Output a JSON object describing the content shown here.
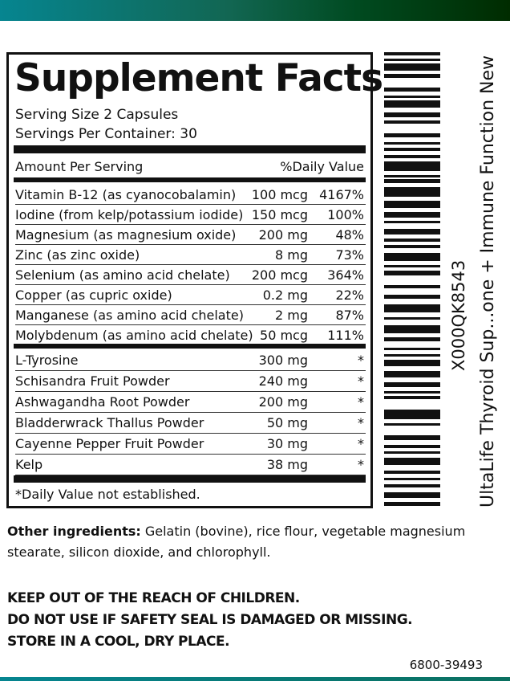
{
  "facts": {
    "title": "Supplement Facts",
    "serving_size": "Serving Size 2 Capsules",
    "servings_per_container": "Servings Per Container: 30",
    "amount_header": "Amount Per Serving",
    "dv_header": "%Daily Value",
    "vitamins": [
      {
        "name": "Vitamin B-12 (as cyanocobalamin)",
        "amount": "100 mcg",
        "dv": "4167%"
      },
      {
        "name": "Iodine (from kelp/potassium iodide)",
        "amount": "150 mcg",
        "dv": "100%"
      },
      {
        "name": "Magnesium (as magnesium oxide)",
        "amount": "200 mg",
        "dv": "48%"
      },
      {
        "name": "Zinc (as zinc oxide)",
        "amount": "8 mg",
        "dv": "73%"
      },
      {
        "name": "Selenium (as amino acid chelate)",
        "amount": "200 mcg",
        "dv": "364%"
      },
      {
        "name": "Copper (as cupric oxide)",
        "amount": "0.2 mg",
        "dv": "22%"
      },
      {
        "name": "Manganese (as amino acid chelate)",
        "amount": "2 mg",
        "dv": "87%"
      },
      {
        "name": "Molybdenum (as amino acid chelate)",
        "amount": "50 mcg",
        "dv": "111%"
      }
    ],
    "others": [
      {
        "name": "L-Tyrosine",
        "amount": "300 mg",
        "dv": "*"
      },
      {
        "name": "Schisandra Fruit Powder",
        "amount": "240 mg",
        "dv": "*"
      },
      {
        "name": "Ashwagandha Root Powder",
        "amount": "200 mg",
        "dv": "*"
      },
      {
        "name": "Bladderwrack Thallus  Powder",
        "amount": "50 mg",
        "dv": "*"
      },
      {
        "name": "Cayenne Pepper Fruit Powder",
        "amount": "30 mg",
        "dv": "*"
      },
      {
        "name": "Kelp",
        "amount": "38 mg",
        "dv": "*"
      }
    ],
    "footnote": "*Daily Value not established."
  },
  "barcode": {
    "code": "X000QK8543",
    "product": "UltaLife Thyroid Sup...one + Immune Function  New"
  },
  "other_ingredients": {
    "label": "Other ingredients:",
    "line1": " Gelatin (bovine), rice flour, vegetable magnesium",
    "line2": "stearate, silicon dioxide, and chlorophyll."
  },
  "warnings": [
    "KEEP OUT OF THE REACH OF CHILDREN.",
    "DO NOT USE IF SAFETY SEAL IS DAMAGED OR MISSING.",
    "STORE IN A COOL, DRY PLACE."
  ],
  "lot": "6800-39493"
}
